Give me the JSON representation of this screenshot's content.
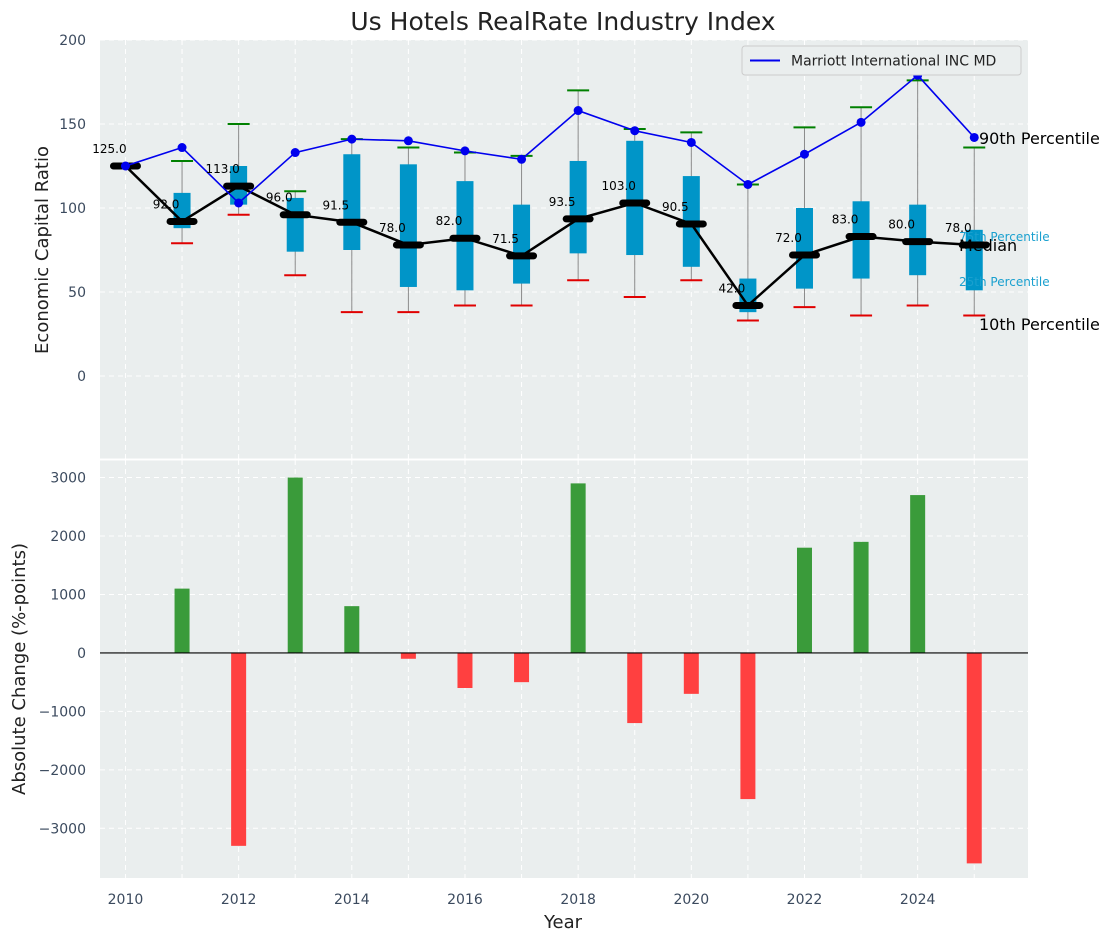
{
  "colors": {
    "panel_bg": "#eaeeee",
    "box_fill": "#0095c8",
    "whisker": "#8a8a8a",
    "p90_cap": "#008000",
    "p10_cap": "#e00000",
    "median": "#000000",
    "company": "#0000ee",
    "pos_bar": "#3a9b3a",
    "neg_bar": "#ff4040",
    "quartile_label": "#1aa0cf"
  },
  "chart_data": {
    "title": "Us Hotels RealRate Industry Index",
    "type": "box-line-bar",
    "xlabel": "Year",
    "years": [
      2010,
      2011,
      2012,
      2013,
      2014,
      2015,
      2016,
      2017,
      2018,
      2019,
      2020,
      2021,
      2022,
      2023,
      2024,
      2025
    ],
    "xticks": [
      2010,
      2012,
      2014,
      2016,
      2018,
      2020,
      2022,
      2024
    ],
    "top": {
      "ylabel": "Economic Capital Ratio",
      "ylim": [
        -50,
        200
      ],
      "yticks": [
        0,
        50,
        100,
        150,
        200
      ],
      "median": [
        125.0,
        92.0,
        113.0,
        96.0,
        91.5,
        78.0,
        82.0,
        71.5,
        93.5,
        103.0,
        90.5,
        42.0,
        72.0,
        83.0,
        80.0,
        78.0
      ],
      "p10": [
        125,
        79,
        96,
        60,
        38,
        38,
        42,
        42,
        57,
        47,
        57,
        33,
        41,
        36,
        42,
        36
      ],
      "p25": [
        125,
        88,
        102,
        74,
        75,
        53,
        51,
        55,
        73,
        72,
        65,
        38,
        52,
        58,
        60,
        51
      ],
      "p75": [
        125,
        109,
        125,
        106,
        132,
        126,
        116,
        102,
        128,
        140,
        119,
        58,
        100,
        104,
        102,
        87
      ],
      "p90": [
        125,
        128,
        150,
        110,
        141,
        136,
        133,
        131,
        170,
        147,
        145,
        114,
        148,
        160,
        176,
        136
      ],
      "company_name": "Marriott International INC MD",
      "company": [
        125,
        136,
        103,
        133,
        141,
        140,
        134,
        129,
        158,
        146,
        139,
        114,
        132,
        151,
        179,
        142
      ],
      "annotations": {
        "p90": "90th Percentile",
        "p75": "75th Percentile",
        "median": "Median",
        "p25": "25th Percentile",
        "p10": "10th Percentile"
      },
      "legend_position": "top-right"
    },
    "bottom": {
      "ylabel": "Absolute Change (%-points)",
      "ylim": [
        -3850,
        3300
      ],
      "yticks": [
        -3000,
        -2000,
        -1000,
        0,
        1000,
        2000,
        3000
      ],
      "changes": [
        0,
        1100,
        -3300,
        3000,
        800,
        -100,
        -600,
        -500,
        2900,
        -1200,
        -700,
        -2500,
        1800,
        1900,
        2700,
        -3600
      ]
    }
  }
}
